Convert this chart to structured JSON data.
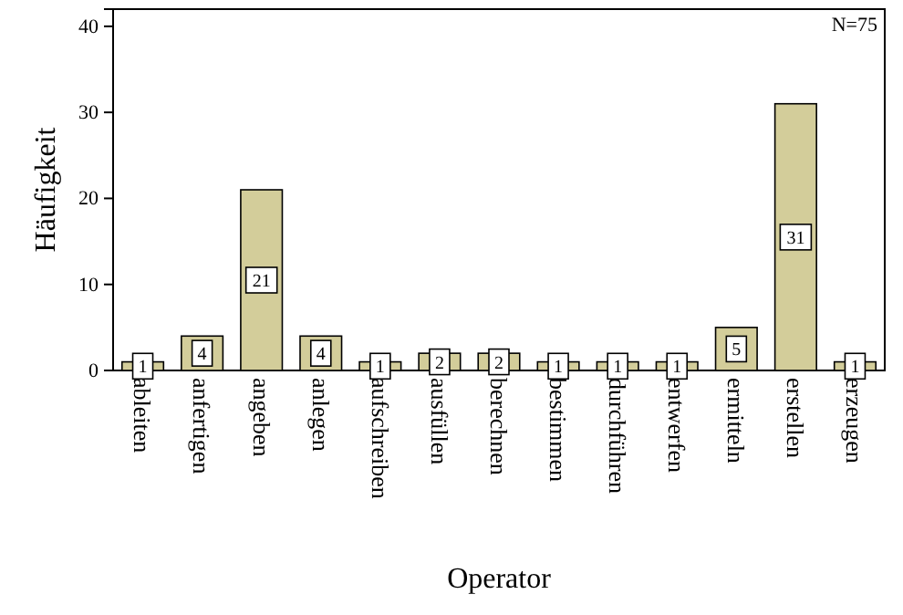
{
  "chart_data": {
    "type": "bar",
    "xlabel": "Operator",
    "ylabel": "Häufigkeit",
    "categories": [
      "ableiten",
      "anfertigen",
      "angeben",
      "anlegen",
      "aufschreiben",
      "ausfüllen",
      "berechnen",
      "bestimmen",
      "durchführen",
      "entwerfen",
      "ermitteln",
      "erstellen",
      "erzeugen"
    ],
    "values": [
      1,
      4,
      21,
      4,
      1,
      2,
      2,
      1,
      1,
      1,
      5,
      31,
      1
    ],
    "color": "#d3cd9a",
    "ylim": [
      0,
      42
    ],
    "yticks": [
      0,
      10,
      20,
      30,
      40
    ],
    "data_labels": true,
    "grid": false,
    "annotations": [
      "N=75"
    ]
  }
}
